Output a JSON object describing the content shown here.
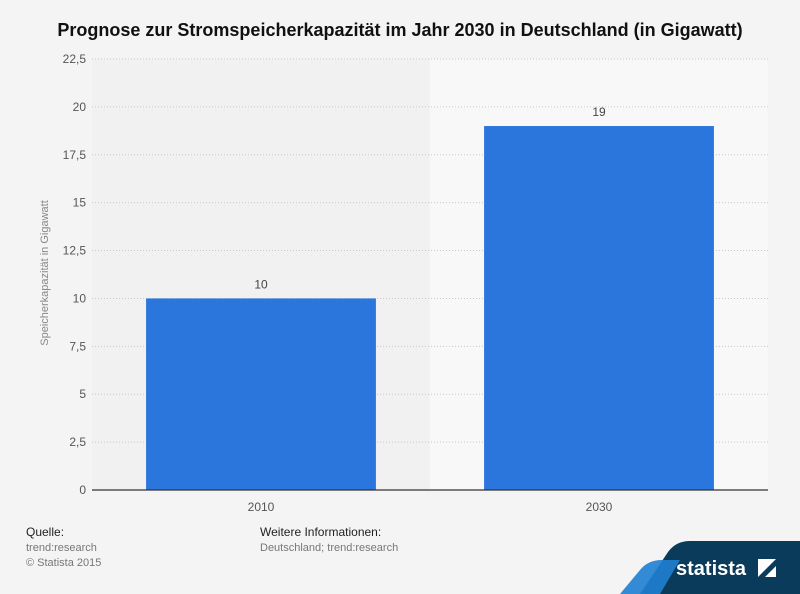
{
  "title": "Prognose zur Stromspeicherkapazität im Jahr 2030 in Deutschland (in Gigawatt)",
  "chart_data": {
    "type": "bar",
    "categories": [
      "2010",
      "2030"
    ],
    "values": [
      10,
      19
    ],
    "ylabel": "Speicherkapazität in Gigawatt",
    "ylim": [
      0,
      22.5
    ],
    "yticks": [
      "0",
      "2,5",
      "5",
      "7,5",
      "10",
      "12,5",
      "15",
      "17,5",
      "20",
      "22,5"
    ],
    "grid": true,
    "bar_color": "#2a76dd"
  },
  "footer": {
    "source_heading": "Quelle:",
    "source_lines": [
      "trend:research",
      "© Statista 2015"
    ],
    "info_heading": "Weitere Informationen:",
    "info_lines": [
      "Deutschland; trend:research"
    ]
  },
  "brand": {
    "name": "statista",
    "color": "#0b3b5b",
    "accent": "#1f7fd1"
  }
}
